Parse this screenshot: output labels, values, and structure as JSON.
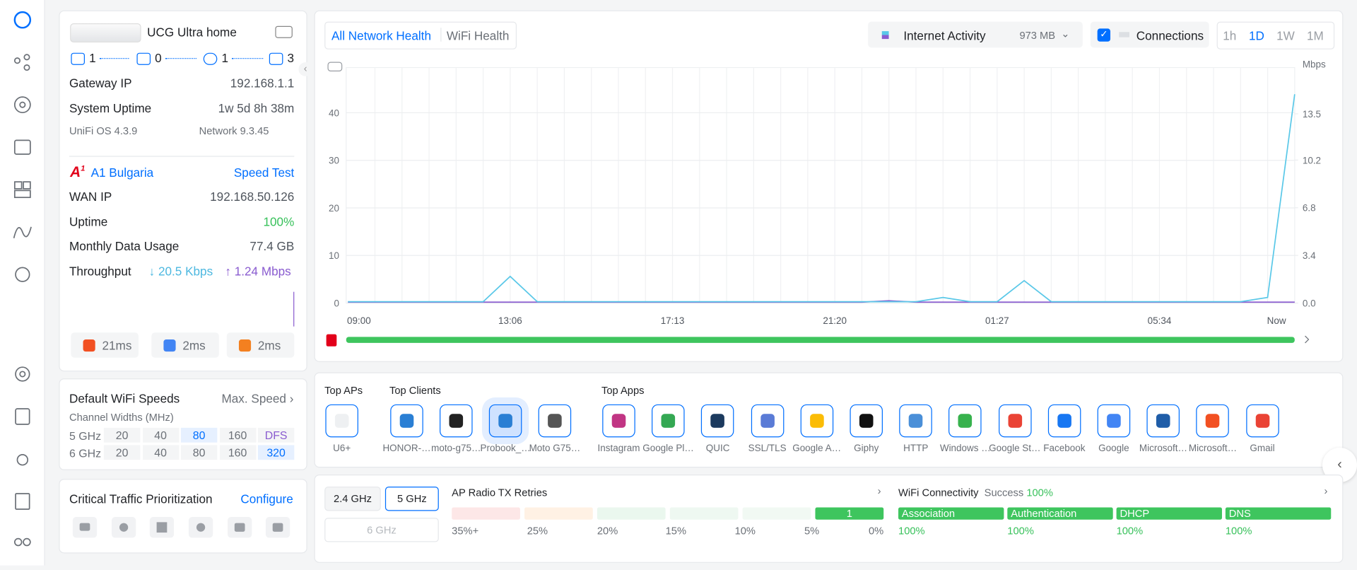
{
  "device": {
    "name": "UCG Ultra home",
    "counts": [
      1,
      0,
      1,
      3
    ]
  },
  "gateway": {
    "rows": [
      [
        "Gateway IP",
        "192.168.1.1"
      ],
      [
        "System Uptime",
        "1w 5d 8h 38m"
      ]
    ],
    "os": "UniFi OS 4.3.9",
    "network": "Network 9.3.45"
  },
  "isp": {
    "name": "A1 Bulgaria",
    "speed_test": "Speed Test",
    "rows": [
      [
        "WAN IP",
        "192.168.50.126"
      ],
      [
        "Uptime",
        "100%"
      ],
      [
        "Monthly Data Usage",
        "77.4 GB"
      ]
    ],
    "throughput_label": "Throughput",
    "down": "20.5 Kbps",
    "up": "1.24 Mbps",
    "latency": [
      "21ms",
      "2ms",
      "2ms"
    ]
  },
  "wifi_speeds": {
    "title": "Default WiFi Speeds",
    "action": "Max. Speed",
    "subtitle": "Channel Widths (MHz)",
    "rows": [
      {
        "band": "5 GHz",
        "widths": [
          20,
          40,
          80,
          160,
          "DFS"
        ],
        "selected": 2
      },
      {
        "band": "6 GHz",
        "widths": [
          20,
          40,
          80,
          160,
          320
        ],
        "selected": 4
      }
    ]
  },
  "traffic": {
    "title": "Critical Traffic Prioritization",
    "action": "Configure"
  },
  "tabs": {
    "items": [
      "All Network Health",
      "WiFi Health"
    ],
    "selected": 0
  },
  "activity": {
    "label": "Internet Activity",
    "total": "973 MB",
    "connections": "Connections"
  },
  "ranges": {
    "items": [
      "1h",
      "1D",
      "1W",
      "1M"
    ],
    "selected": 1
  },
  "chart_data": {
    "type": "line",
    "y2_unit": "Mbps",
    "categories": [
      "09:00",
      null,
      null,
      null,
      null,
      null,
      "13:06",
      null,
      null,
      null,
      null,
      null,
      "17:13",
      null,
      null,
      null,
      null,
      null,
      "21:20",
      null,
      null,
      null,
      null,
      null,
      "01:27",
      null,
      null,
      null,
      null,
      null,
      "05:34",
      null,
      null,
      null,
      null,
      "Now"
    ],
    "series": [
      {
        "name": "Connections",
        "color": "#8a5cd0",
        "axis": "y",
        "values": [
          0.2,
          0.2,
          0.2,
          0.2,
          0.2,
          0.2,
          0.2,
          0.2,
          0.2,
          0.2,
          0.2,
          0.2,
          0.2,
          0.2,
          0.2,
          0.2,
          0.2,
          0.2,
          0.2,
          0.2,
          0.5,
          0.2,
          0.2,
          0.2,
          0.2,
          0.2,
          0.2,
          0.2,
          0.2,
          0.2,
          0.2,
          0.2,
          0.2,
          0.2,
          0.2,
          0.2
        ]
      },
      {
        "name": "Internet Activity",
        "color": "#5ac8e8",
        "axis": "y2",
        "values": [
          0.1,
          0.1,
          0.1,
          0.1,
          0.1,
          0.1,
          1.9,
          0.1,
          0.1,
          0.1,
          0.1,
          0.1,
          0.1,
          0.1,
          0.1,
          0.1,
          0.1,
          0.1,
          0.1,
          0.1,
          0.1,
          0.1,
          0.4,
          0.1,
          0.1,
          1.6,
          0.1,
          0.1,
          0.1,
          0.1,
          0.1,
          0.1,
          0.1,
          0.1,
          0.4,
          14.9
        ]
      }
    ],
    "ylim": [
      0,
      49.5
    ],
    "yticks": [
      0,
      10,
      20,
      30,
      40
    ],
    "y2lim": [
      0,
      16.8
    ],
    "y2ticks": [
      {
        "value": 0,
        "label": "0.0"
      },
      3.4,
      6.8,
      10.2,
      13.5
    ],
    "grid": true
  },
  "top": {
    "aps_title": "Top APs",
    "aps": [
      "U6+"
    ],
    "clients_title": "Top Clients",
    "clients": [
      "HONOR-…",
      "moto-g75…",
      "Probook_…",
      "Moto G75…"
    ],
    "apps_title": "Top Apps",
    "apps": [
      "Instagram",
      "Google Pl…",
      "QUIC",
      "SSL/TLS",
      "Google A…",
      "Giphy",
      "HTTP",
      "Windows …",
      "Google St…",
      "Facebook",
      "Google",
      "Microsoft…",
      "Microsoft…",
      "Gmail"
    ]
  },
  "radio": {
    "bands": [
      "2.4 GHz",
      "5 GHz",
      "6 GHz"
    ],
    "selected": 1,
    "title": "AP Radio TX Retries",
    "count": 1,
    "scale": [
      "35%+",
      "25%",
      "20%",
      "15%",
      "10%",
      "5%",
      "0%"
    ]
  },
  "wifi": {
    "title": "WiFi Connectivity",
    "status": "Success",
    "rate": "100%",
    "stages": [
      {
        "name": "Association",
        "value": "100%"
      },
      {
        "name": "Authentication",
        "value": "100%"
      },
      {
        "name": "DHCP",
        "value": "100%"
      },
      {
        "name": "DNS",
        "value": "100%"
      }
    ]
  }
}
